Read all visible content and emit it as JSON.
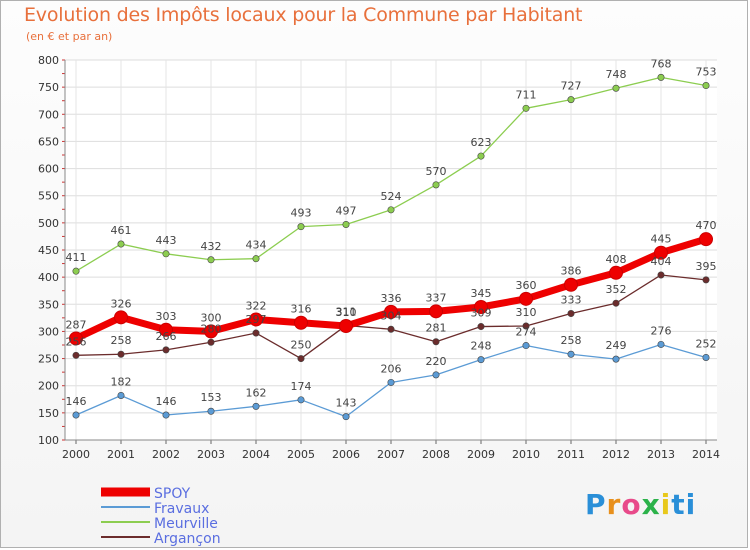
{
  "title": "Evolution des Impôts locaux pour la Commune par Habitant",
  "subtitle": "(en € et par an)",
  "logo_text": "Proxiti",
  "colors": {
    "title": "#e8703c",
    "SPOY": "#ee0000",
    "Fravaux": "#5b9bd5",
    "Meurville": "#8ccd50",
    "Argançon": "#6b2c2c"
  },
  "chart_data": {
    "type": "line",
    "title": "Evolution des Impôts locaux pour la Commune par Habitant",
    "subtitle": "(en € et par an)",
    "xlabel": "",
    "ylabel": "",
    "x": [
      2000,
      2001,
      2002,
      2003,
      2004,
      2005,
      2006,
      2007,
      2008,
      2009,
      2010,
      2011,
      2012,
      2013,
      2014
    ],
    "ylim": [
      100,
      800
    ],
    "yticks": [
      100,
      150,
      200,
      250,
      300,
      350,
      400,
      450,
      500,
      550,
      600,
      650,
      700,
      750,
      800
    ],
    "grid": true,
    "legend_position": "bottom-left",
    "series": [
      {
        "name": "SPOY",
        "color": "#ee0000",
        "values": [
          287,
          326,
          303,
          300,
          322,
          316,
          310,
          336,
          337,
          345,
          360,
          386,
          408,
          445,
          470
        ]
      },
      {
        "name": "Fravaux",
        "color": "#5b9bd5",
        "values": [
          146,
          182,
          146,
          153,
          162,
          174,
          143,
          206,
          220,
          248,
          274,
          258,
          249,
          276,
          252
        ]
      },
      {
        "name": "Meurville",
        "color": "#8ccd50",
        "values": [
          411,
          461,
          443,
          432,
          434,
          493,
          497,
          524,
          570,
          623,
          711,
          727,
          748,
          768,
          753
        ]
      },
      {
        "name": "Argançon",
        "color": "#6b2c2c",
        "values": [
          256,
          258,
          266,
          280,
          297,
          250,
          311,
          304,
          281,
          309,
          310,
          333,
          352,
          404,
          395
        ]
      }
    ]
  }
}
